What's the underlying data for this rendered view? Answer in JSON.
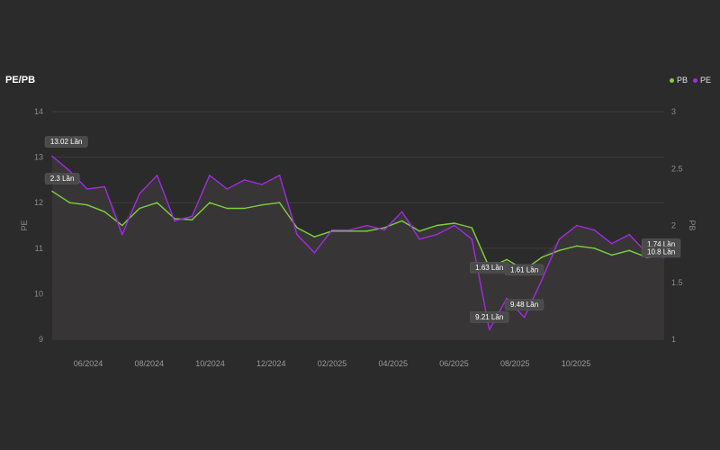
{
  "title": "PE/PB",
  "colors": {
    "pb": "#7bd23d",
    "pe": "#a12be0",
    "background": "#2b2b2b",
    "area": "#3a3639"
  },
  "legend": [
    {
      "label": "PB",
      "color": "#7bd23d"
    },
    {
      "label": "PE",
      "color": "#a12be0"
    }
  ],
  "chart_data": {
    "type": "line",
    "ylabel": "PE",
    "y2label": "PB",
    "ylim": [
      9,
      14
    ],
    "y2lim": [
      1,
      3
    ],
    "yticks": [
      "9",
      "10",
      "11",
      "12",
      "13",
      "14"
    ],
    "y2ticks": [
      "1",
      "1.5",
      "2",
      "2.5",
      "3"
    ],
    "xticks": [
      "06/2024",
      "08/2024",
      "10/2024",
      "12/2024",
      "02/2025",
      "04/2025",
      "06/2025",
      "08/2025",
      "10/2025"
    ],
    "x": [
      "2024-05",
      "2024-05",
      "2024-06",
      "2024-06",
      "2024-06",
      "2024-07",
      "2024-07",
      "2024-08",
      "2024-08",
      "2024-09",
      "2024-09",
      "2024-10",
      "2024-10",
      "2024-11",
      "2024-11",
      "2024-12",
      "2024-12",
      "2025-01",
      "2025-01",
      "2025-02",
      "2025-02",
      "2025-03",
      "2025-03",
      "2025-04",
      "2025-04",
      "2025-05",
      "2025-05",
      "2025-06",
      "2025-06",
      "2025-07",
      "2025-07",
      "2025-08",
      "2025-08",
      "2025-09",
      "2025-09",
      "2025-10"
    ],
    "series": [
      {
        "name": "PE",
        "axis": "left",
        "values": [
          13.02,
          12.7,
          12.3,
          12.35,
          11.3,
          12.2,
          12.6,
          11.6,
          11.7,
          12.6,
          12.3,
          12.5,
          12.4,
          12.6,
          11.3,
          10.9,
          11.4,
          11.4,
          11.5,
          11.4,
          11.8,
          11.2,
          11.3,
          11.5,
          11.2,
          9.21,
          9.9,
          9.48,
          10.3,
          11.2,
          11.5,
          11.4,
          11.1,
          11.3,
          10.9,
          10.8
        ]
      },
      {
        "name": "PB",
        "axis": "right",
        "values": [
          2.3,
          2.2,
          2.18,
          2.12,
          2.0,
          2.15,
          2.2,
          2.06,
          2.05,
          2.2,
          2.15,
          2.15,
          2.18,
          2.2,
          1.98,
          1.9,
          1.95,
          1.95,
          1.95,
          1.98,
          2.04,
          1.95,
          2.0,
          2.02,
          1.98,
          1.63,
          1.7,
          1.61,
          1.72,
          1.78,
          1.82,
          1.8,
          1.74,
          1.78,
          1.72,
          1.74
        ]
      }
    ],
    "annotations": [
      {
        "series": "PE",
        "index": 0,
        "text": "13.02 Lần"
      },
      {
        "series": "PB",
        "index": 0,
        "text": "2.3 Lần"
      },
      {
        "series": "PB",
        "index": 25,
        "text": "1.63 Lần"
      },
      {
        "series": "PB",
        "index": 27,
        "text": "1.61 Lần"
      },
      {
        "series": "PE",
        "index": 25,
        "text": "9.21 Lần"
      },
      {
        "series": "PE",
        "index": 27,
        "text": "9.48 Lần"
      },
      {
        "series": "PB",
        "index": 35,
        "text": "1.74 Lần"
      },
      {
        "series": "PE",
        "index": 35,
        "text": "10.8 Lần"
      }
    ],
    "grid": true,
    "legend_position": "top-right"
  }
}
